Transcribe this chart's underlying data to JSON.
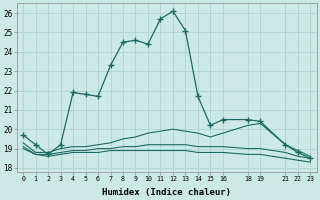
{
  "xlabel": "Humidex (Indice chaleur)",
  "background_color": "#cce9e5",
  "grid_color": "#aacfcb",
  "line_color": "#1a6b62",
  "xlim": [
    -0.5,
    23.5
  ],
  "ylim": [
    17.8,
    26.5
  ],
  "x_ticks": [
    0,
    1,
    2,
    3,
    4,
    5,
    6,
    7,
    8,
    9,
    10,
    11,
    12,
    13,
    14,
    15,
    16,
    18,
    19,
    21,
    22,
    23
  ],
  "y_ticks": [
    18,
    19,
    20,
    21,
    22,
    23,
    24,
    25,
    26
  ],
  "series": [
    {
      "x": [
        0,
        1,
        2,
        3,
        4,
        5,
        6,
        7,
        8,
        9,
        10,
        11,
        12,
        13,
        14,
        15,
        16,
        18,
        19,
        21,
        22,
        23
      ],
      "y": [
        19.7,
        19.2,
        18.7,
        19.2,
        21.9,
        21.8,
        21.7,
        23.3,
        24.5,
        24.6,
        24.4,
        25.7,
        26.1,
        25.1,
        21.7,
        20.2,
        20.5,
        20.5,
        20.4,
        19.2,
        18.8,
        18.5
      ],
      "marker": "+",
      "linewidth": 0.9,
      "markersize": 4,
      "has_marker": true
    },
    {
      "x": [
        0,
        1,
        2,
        3,
        4,
        5,
        6,
        7,
        8,
        9,
        10,
        11,
        12,
        13,
        14,
        15,
        16,
        18,
        19,
        21,
        22,
        23
      ],
      "y": [
        19.0,
        18.7,
        18.6,
        18.7,
        18.8,
        18.8,
        18.8,
        18.9,
        18.9,
        18.9,
        18.9,
        18.9,
        18.9,
        18.9,
        18.8,
        18.8,
        18.8,
        18.7,
        18.7,
        18.5,
        18.4,
        18.3
      ],
      "marker": null,
      "linewidth": 0.8,
      "has_marker": false
    },
    {
      "x": [
        0,
        1,
        2,
        3,
        4,
        5,
        6,
        7,
        8,
        9,
        10,
        11,
        12,
        13,
        14,
        15,
        16,
        18,
        19,
        21,
        22,
        23
      ],
      "y": [
        19.1,
        18.7,
        18.7,
        18.8,
        18.9,
        18.9,
        19.0,
        19.0,
        19.1,
        19.1,
        19.2,
        19.2,
        19.2,
        19.2,
        19.1,
        19.1,
        19.1,
        19.0,
        19.0,
        18.8,
        18.6,
        18.5
      ],
      "marker": null,
      "linewidth": 0.8,
      "has_marker": false
    },
    {
      "x": [
        0,
        1,
        2,
        3,
        4,
        5,
        6,
        7,
        8,
        9,
        10,
        11,
        12,
        13,
        14,
        15,
        16,
        18,
        19,
        21,
        22,
        23
      ],
      "y": [
        19.3,
        18.8,
        18.8,
        19.0,
        19.1,
        19.1,
        19.2,
        19.3,
        19.5,
        19.6,
        19.8,
        19.9,
        20.0,
        19.9,
        19.8,
        19.6,
        19.8,
        20.2,
        20.3,
        19.2,
        18.9,
        18.6
      ],
      "marker": null,
      "linewidth": 0.8,
      "has_marker": false
    }
  ]
}
